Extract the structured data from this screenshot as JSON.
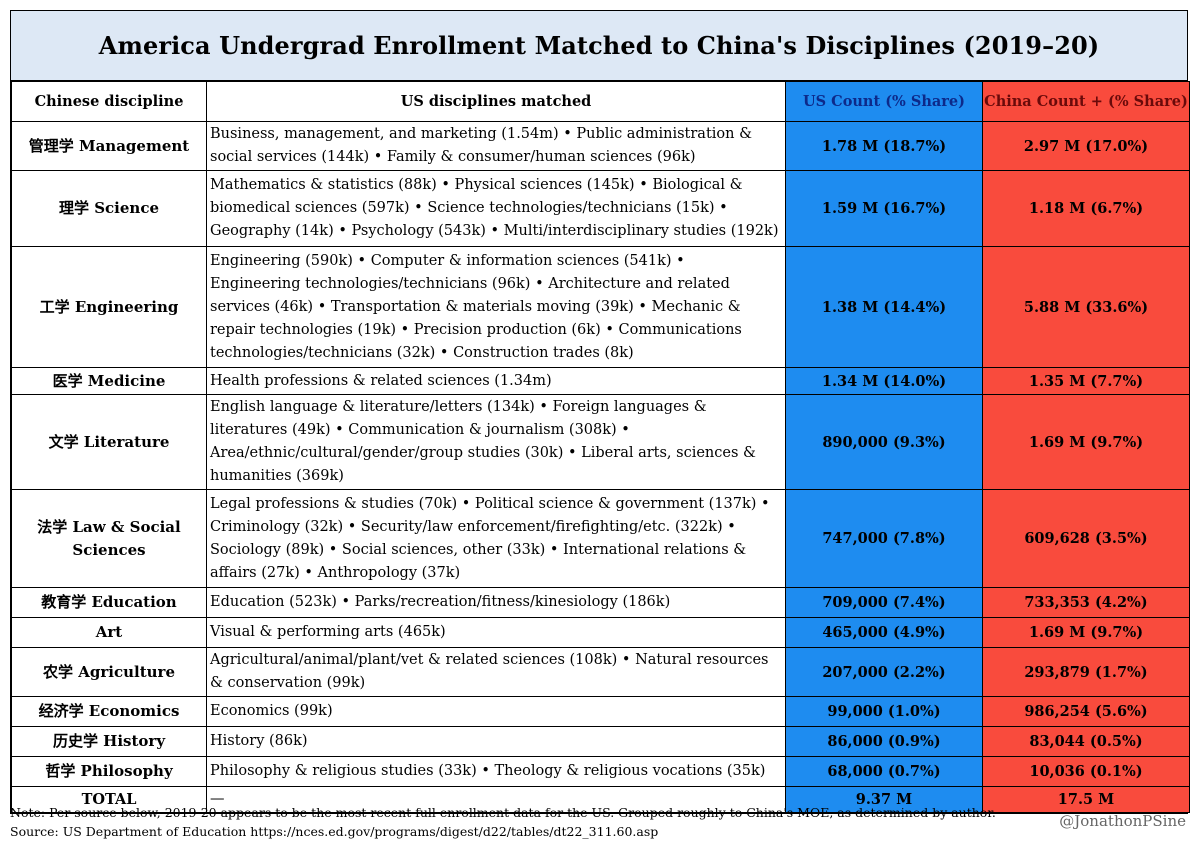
{
  "chart_data": {
    "type": "table",
    "title": "America Undergrad Enrollment Matched to China's Disciplines (2019–20)",
    "columns": [
      "Chinese discipline",
      "US disciplines matched",
      "US Count (% Share)",
      "China Count + (% Share)"
    ],
    "rows": [
      {
        "discipline": "管理学 Management",
        "matched": "Business, management, and marketing (1.54m) • Public administration & social services (144k) • Family & consumer/human sciences (96k)",
        "us": "1.78 M (18.7%)",
        "china": "2.97 M (17.0%)"
      },
      {
        "discipline": "理学 Science",
        "matched": "Mathematics & statistics (88k) • Physical sciences (145k) • Biological & biomedical sciences (597k) • Science technologies/technicians (15k) • Geography (14k) • Psychology (543k) • Multi/interdisciplinary studies (192k)",
        "us": "1.59 M (16.7%)",
        "china": "1.18 M (6.7%)"
      },
      {
        "discipline": "工学 Engineering",
        "matched": "Engineering (590k) • Computer & information sciences (541k) • Engineering technologies/technicians (96k) • Architecture and related services (46k) • Transportation & materials moving (39k) • Mechanic & repair technologies (19k) • Precision production (6k) • Communications technologies/technicians (32k) • Construction trades (8k)",
        "us": "1.38 M (14.4%)",
        "china": "5.88 M (33.6%)"
      },
      {
        "discipline": "医学 Medicine",
        "matched": "Health professions & related sciences (1.34m)",
        "us": "1.34 M (14.0%)",
        "china": "1.35 M (7.7%)"
      },
      {
        "discipline": "文学 Literature",
        "matched": "English language & literature/letters (134k) • Foreign languages & literatures (49k) • Communication & journalism (308k) • Area/ethnic/cultural/gender/group studies (30k) • Liberal arts, sciences & humanities (369k)",
        "us": "890,000 (9.3%)",
        "china": "1.69 M (9.7%)"
      },
      {
        "discipline": "法学 Law & Social Sciences",
        "matched": "Legal professions & studies (70k) • Political science & government (137k) • Criminology (32k) • Security/law enforcement/firefighting/etc. (322k) • Sociology (89k) • Social sciences, other (33k) • International relations & affairs (27k) • Anthropology (37k)",
        "us": "747,000 (7.8%)",
        "china": "609,628 (3.5%)"
      },
      {
        "discipline": "教育学 Education",
        "matched": "Education (523k) • Parks/recreation/fitness/kinesiology (186k)",
        "us": "709,000 (7.4%)",
        "china": "733,353 (4.2%)"
      },
      {
        "discipline": "Art",
        "matched": "Visual & performing arts (465k)",
        "us": "465,000 (4.9%)",
        "china": "1.69 M (9.7%)"
      },
      {
        "discipline": "农学 Agriculture",
        "matched": "Agricultural/animal/plant/vet & related sciences (108k) • Natural resources & conservation (99k)",
        "us": "207,000 (2.2%)",
        "china": "293,879 (1.7%)"
      },
      {
        "discipline": "经济学 Economics",
        "matched": "Economics (99k)",
        "us": "99,000 (1.0%)",
        "china": "986,254 (5.6%)"
      },
      {
        "discipline": "历史学 History",
        "matched": "History (86k)",
        "us": "86,000 (0.9%)",
        "china": "83,044 (0.5%)"
      },
      {
        "discipline": "哲学 Philosophy",
        "matched": "Philosophy & religious studies (33k) • Theology & religious vocations (35k)",
        "us": "68,000 (0.7%)",
        "china": "10,036 (0.1%)"
      }
    ],
    "total": {
      "label": "TOTAL",
      "matched": "—",
      "us": "9.37 M",
      "china": "17.5 M"
    }
  },
  "footnote": {
    "note": "Note: Per source below, 2019-20 appears to be the most recent full enrollment data for the US. Grouped roughly to China's MOE, as determined by author.",
    "source": "Source: US Department of Education https://nces.ed.gov/programs/digest/d22/tables/dt22_311.60.asp"
  },
  "handle": "@JonathonPSine",
  "colors": {
    "us": "#1e8cf0",
    "china": "#f94b3d",
    "title_bg": "#dde8f5"
  }
}
